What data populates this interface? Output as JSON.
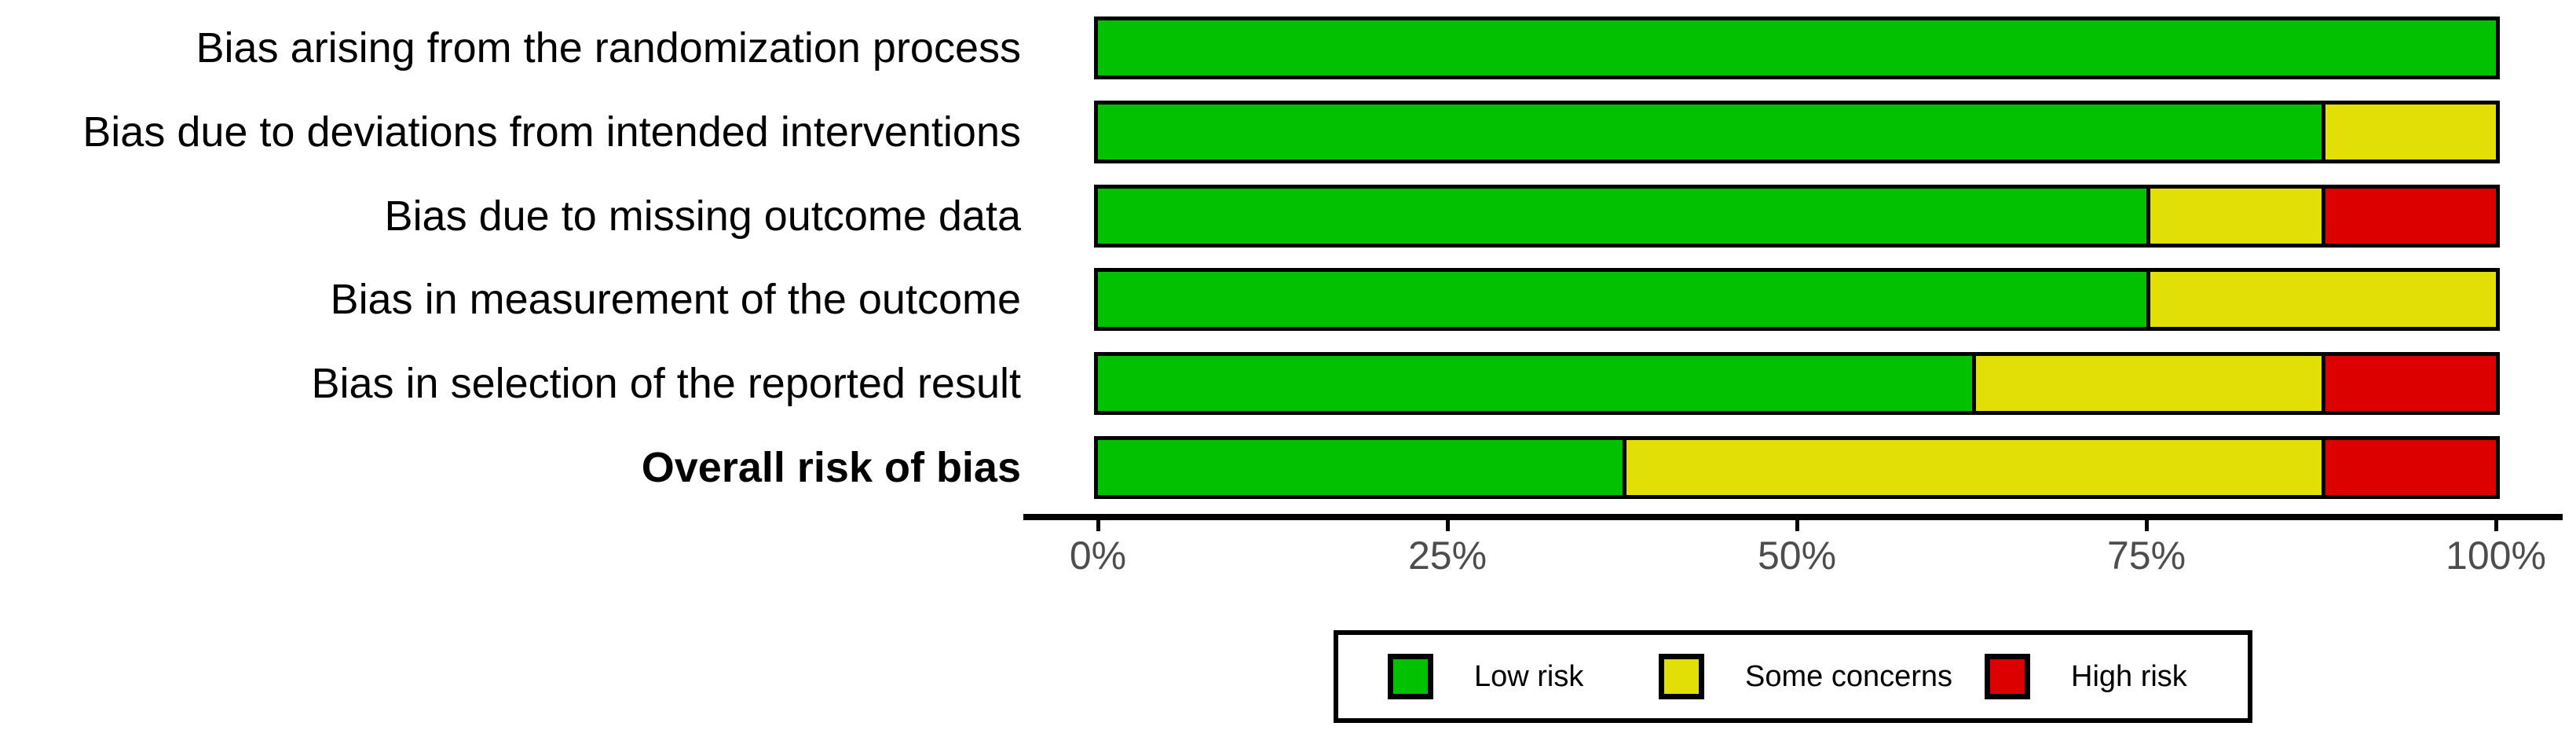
{
  "chart_data": {
    "type": "bar",
    "stacked": true,
    "orientation": "horizontal",
    "categories": [
      {
        "label": "Bias arising from the randomization process",
        "bold": false
      },
      {
        "label": "Bias due to deviations from intended interventions",
        "bold": false
      },
      {
        "label": "Bias due to missing outcome data",
        "bold": false
      },
      {
        "label": "Bias in measurement of the outcome",
        "bold": false
      },
      {
        "label": "Bias in selection of the reported result",
        "bold": false
      },
      {
        "label": "Overall risk of bias",
        "bold": true
      }
    ],
    "series": [
      {
        "name": "Low risk",
        "color": "#02c100",
        "values": [
          100,
          87.5,
          75,
          75,
          62.5,
          37.5
        ]
      },
      {
        "name": "Some concerns",
        "color": "#e2df07",
        "values": [
          0,
          12.5,
          12.5,
          25,
          25,
          50
        ]
      },
      {
        "name": "High risk",
        "color": "#dd0000",
        "values": [
          0,
          0,
          12.5,
          0,
          12.5,
          12.5
        ]
      }
    ],
    "x_axis": {
      "range": [
        0,
        100
      ],
      "ticks": [
        {
          "label": "0%",
          "value": 0
        },
        {
          "label": "25%",
          "value": 25
        },
        {
          "label": "50%",
          "value": 50
        },
        {
          "label": "75%",
          "value": 75
        },
        {
          "label": "100%",
          "value": 100
        }
      ],
      "tick_label_color": "#4d4d4d"
    },
    "legend": {
      "position": "bottom",
      "border": true
    }
  }
}
